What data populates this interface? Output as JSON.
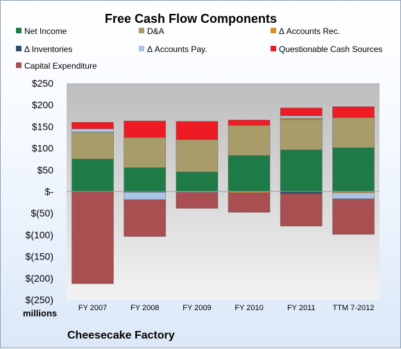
{
  "chart_data": {
    "type": "bar",
    "stacked": true,
    "title": "Free Cash Flow Components",
    "units_label": "millions",
    "footer": "Cheesecake Factory",
    "categories": [
      "FY 2007",
      "FY 2008",
      "FY 2009",
      "FY 2010",
      "FY 2011",
      "TTM 7-2012"
    ],
    "y_ticks": [
      "$250",
      "$200",
      "$150",
      "$100",
      "$50",
      "$-",
      "$(50)",
      "$(100)",
      "$(150)",
      "$(200)",
      "$(250)"
    ],
    "ylim": [
      -250,
      250
    ],
    "grid": false,
    "legend_position": "top",
    "series": [
      {
        "name": "Net Income",
        "color": "#1e7b48",
        "values": [
          75,
          55,
          45,
          83,
          96,
          101
        ]
      },
      {
        "name": "D&A",
        "color": "#a89c6a",
        "values": [
          62,
          70,
          75,
          70,
          70,
          70
        ]
      },
      {
        "name": "Δ Accounts Rec.",
        "color": "#d98c2b",
        "values": [
          0,
          0,
          0,
          -3,
          3,
          -3
        ]
      },
      {
        "name": "Δ Inventories",
        "color": "#2e4a6e",
        "values": [
          0,
          -2,
          0,
          0,
          -5,
          0
        ]
      },
      {
        "name": "Δ Accounts Pay.",
        "color": "#a9c4e6",
        "values": [
          8,
          -17,
          -2,
          0,
          6,
          -14
        ]
      },
      {
        "name": "Questionable Cash Sources",
        "color": "#ee1b24",
        "values": [
          15,
          38,
          42,
          12,
          18,
          25
        ]
      },
      {
        "name": "Capital Expenditure",
        "color": "#a94e51",
        "values": [
          -213,
          -85,
          -37,
          -45,
          -75,
          -82
        ]
      }
    ]
  }
}
